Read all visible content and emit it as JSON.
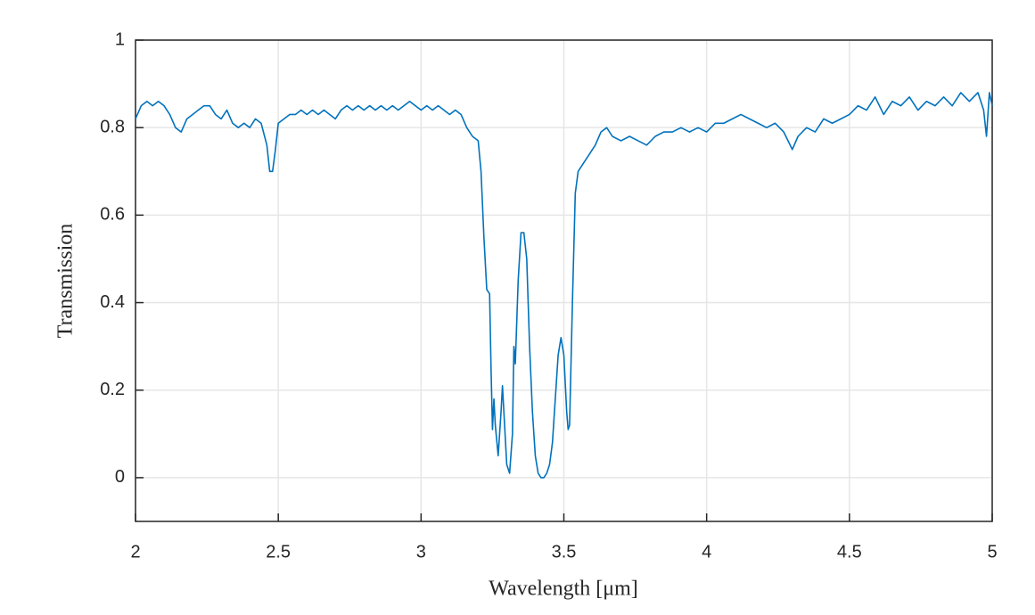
{
  "chart_data": {
    "type": "line",
    "color": "#0072bd",
    "grid": true,
    "xlabel": "Wavelength [μm]",
    "ylabel": "Transmission",
    "xlim": [
      2,
      5
    ],
    "ylim": [
      -0.1,
      1
    ],
    "xticks": [
      2,
      2.5,
      3,
      3.5,
      4,
      4.5,
      5
    ],
    "yticks": [
      0,
      0.2,
      0.4,
      0.6,
      0.8,
      1
    ],
    "x": [
      2.0,
      2.02,
      2.04,
      2.06,
      2.08,
      2.1,
      2.12,
      2.14,
      2.16,
      2.18,
      2.2,
      2.22,
      2.24,
      2.26,
      2.28,
      2.3,
      2.32,
      2.34,
      2.36,
      2.38,
      2.4,
      2.42,
      2.44,
      2.46,
      2.47,
      2.48,
      2.49,
      2.5,
      2.52,
      2.54,
      2.56,
      2.58,
      2.6,
      2.62,
      2.64,
      2.66,
      2.68,
      2.7,
      2.72,
      2.74,
      2.76,
      2.78,
      2.8,
      2.82,
      2.84,
      2.86,
      2.88,
      2.9,
      2.92,
      2.94,
      2.96,
      2.98,
      3.0,
      3.02,
      3.04,
      3.06,
      3.08,
      3.1,
      3.12,
      3.14,
      3.16,
      3.18,
      3.2,
      3.21,
      3.22,
      3.23,
      3.24,
      3.245,
      3.25,
      3.255,
      3.26,
      3.27,
      3.28,
      3.285,
      3.29,
      3.3,
      3.31,
      3.32,
      3.325,
      3.33,
      3.34,
      3.35,
      3.36,
      3.37,
      3.38,
      3.39,
      3.4,
      3.41,
      3.42,
      3.43,
      3.44,
      3.45,
      3.46,
      3.47,
      3.48,
      3.49,
      3.5,
      3.51,
      3.515,
      3.52,
      3.53,
      3.54,
      3.55,
      3.57,
      3.59,
      3.61,
      3.63,
      3.65,
      3.67,
      3.7,
      3.73,
      3.76,
      3.79,
      3.82,
      3.85,
      3.88,
      3.91,
      3.94,
      3.97,
      4.0,
      4.03,
      4.06,
      4.09,
      4.12,
      4.15,
      4.18,
      4.21,
      4.24,
      4.27,
      4.3,
      4.32,
      4.35,
      4.38,
      4.41,
      4.44,
      4.47,
      4.5,
      4.53,
      4.56,
      4.59,
      4.62,
      4.65,
      4.68,
      4.71,
      4.74,
      4.77,
      4.8,
      4.83,
      4.86,
      4.89,
      4.92,
      4.95,
      4.97,
      4.98,
      4.99,
      5.0
    ],
    "values": [
      0.82,
      0.85,
      0.86,
      0.85,
      0.86,
      0.85,
      0.83,
      0.8,
      0.79,
      0.82,
      0.83,
      0.84,
      0.85,
      0.85,
      0.83,
      0.82,
      0.84,
      0.81,
      0.8,
      0.81,
      0.8,
      0.82,
      0.81,
      0.76,
      0.7,
      0.7,
      0.75,
      0.81,
      0.82,
      0.83,
      0.83,
      0.84,
      0.83,
      0.84,
      0.83,
      0.84,
      0.83,
      0.82,
      0.84,
      0.85,
      0.84,
      0.85,
      0.84,
      0.85,
      0.84,
      0.85,
      0.84,
      0.85,
      0.84,
      0.85,
      0.86,
      0.85,
      0.84,
      0.85,
      0.84,
      0.85,
      0.84,
      0.83,
      0.84,
      0.83,
      0.8,
      0.78,
      0.77,
      0.7,
      0.55,
      0.43,
      0.42,
      0.25,
      0.11,
      0.18,
      0.12,
      0.05,
      0.15,
      0.21,
      0.15,
      0.03,
      0.01,
      0.1,
      0.3,
      0.26,
      0.45,
      0.56,
      0.56,
      0.5,
      0.3,
      0.15,
      0.05,
      0.01,
      0.0,
      0.0,
      0.01,
      0.03,
      0.08,
      0.18,
      0.28,
      0.32,
      0.28,
      0.15,
      0.11,
      0.12,
      0.4,
      0.65,
      0.7,
      0.72,
      0.74,
      0.76,
      0.79,
      0.8,
      0.78,
      0.77,
      0.78,
      0.77,
      0.76,
      0.78,
      0.79,
      0.79,
      0.8,
      0.79,
      0.8,
      0.79,
      0.81,
      0.81,
      0.82,
      0.83,
      0.82,
      0.81,
      0.8,
      0.81,
      0.79,
      0.75,
      0.78,
      0.8,
      0.79,
      0.82,
      0.81,
      0.82,
      0.83,
      0.85,
      0.84,
      0.87,
      0.83,
      0.86,
      0.85,
      0.87,
      0.84,
      0.86,
      0.85,
      0.87,
      0.85,
      0.88,
      0.86,
      0.88,
      0.84,
      0.78,
      0.88,
      0.85
    ]
  }
}
